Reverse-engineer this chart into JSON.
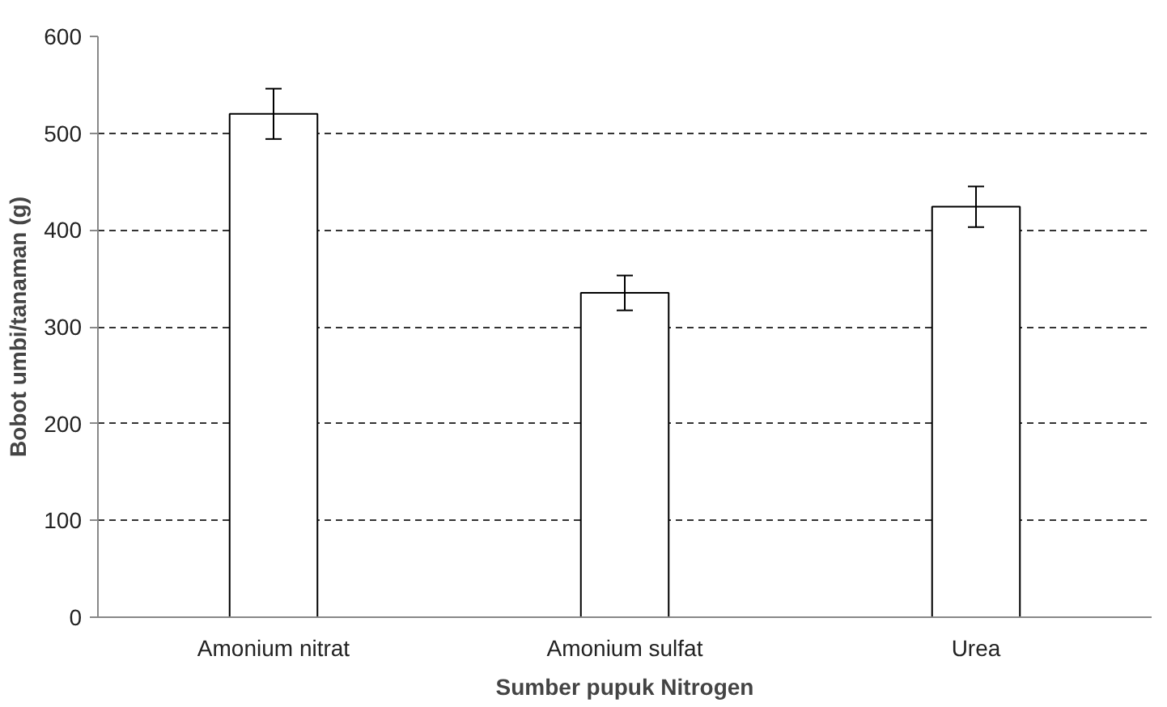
{
  "chart_data": {
    "type": "bar",
    "xlabel": "Sumber pupuk Nitrogen",
    "ylabel": "Bobot umbi/tanaman (g)",
    "categories": [
      "Amonium nitrat",
      "Amonium sulfat",
      "Urea"
    ],
    "values": [
      520,
      335,
      424
    ],
    "errors": [
      26,
      18,
      21
    ],
    "color": "#ffffff",
    "ylim": [
      0,
      600
    ],
    "yticks": [
      0,
      100,
      200,
      300,
      400,
      500,
      600
    ],
    "grid": "y"
  }
}
